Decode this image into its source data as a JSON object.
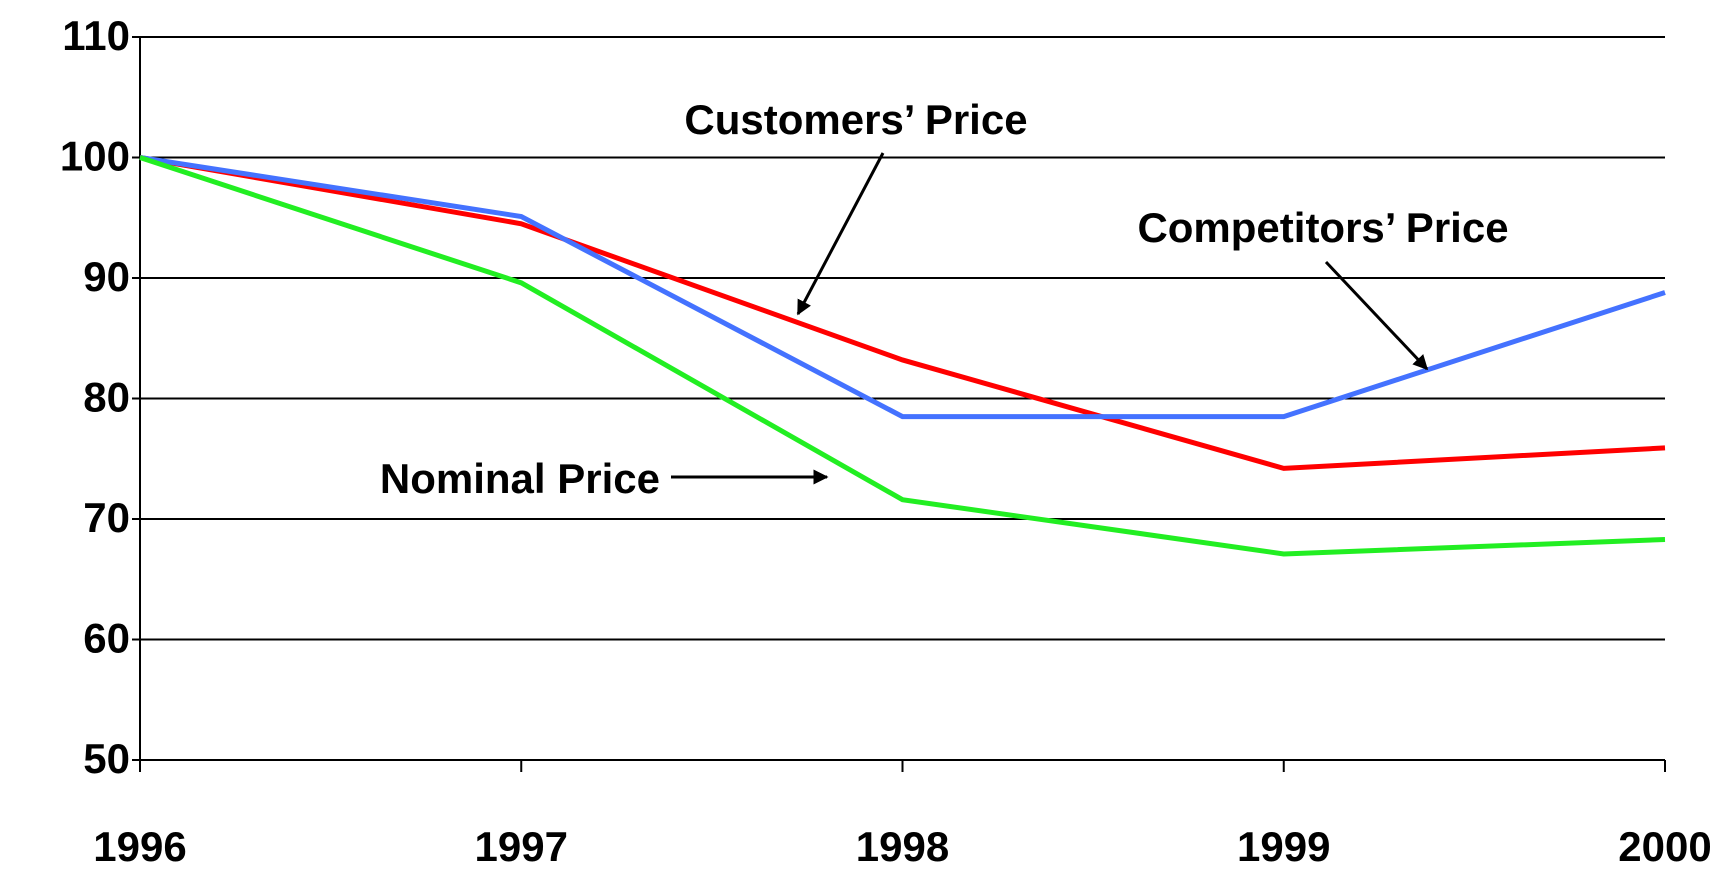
{
  "chart_data": {
    "type": "line",
    "x": [
      1996,
      1997,
      1998,
      1999,
      2000
    ],
    "xlim": [
      1996,
      2000
    ],
    "xticks": [
      1996,
      1997,
      1998,
      1999,
      2000
    ],
    "ylim": [
      50,
      110
    ],
    "yticks": [
      50,
      60,
      70,
      80,
      90,
      100,
      110
    ],
    "grid": true,
    "series": [
      {
        "name": "Customers’ Price",
        "color": "#ff0000",
        "values": [
          100,
          94.5,
          83.2,
          74.2,
          75.9
        ]
      },
      {
        "name": "Competitors’ Price",
        "color": "#4472ff",
        "values": [
          100,
          95.1,
          78.5,
          78.5,
          88.8
        ]
      },
      {
        "name": "Nominal Price",
        "color": "#22ee22",
        "values": [
          100,
          89.6,
          71.6,
          67.1,
          68.3
        ]
      }
    ]
  }
}
